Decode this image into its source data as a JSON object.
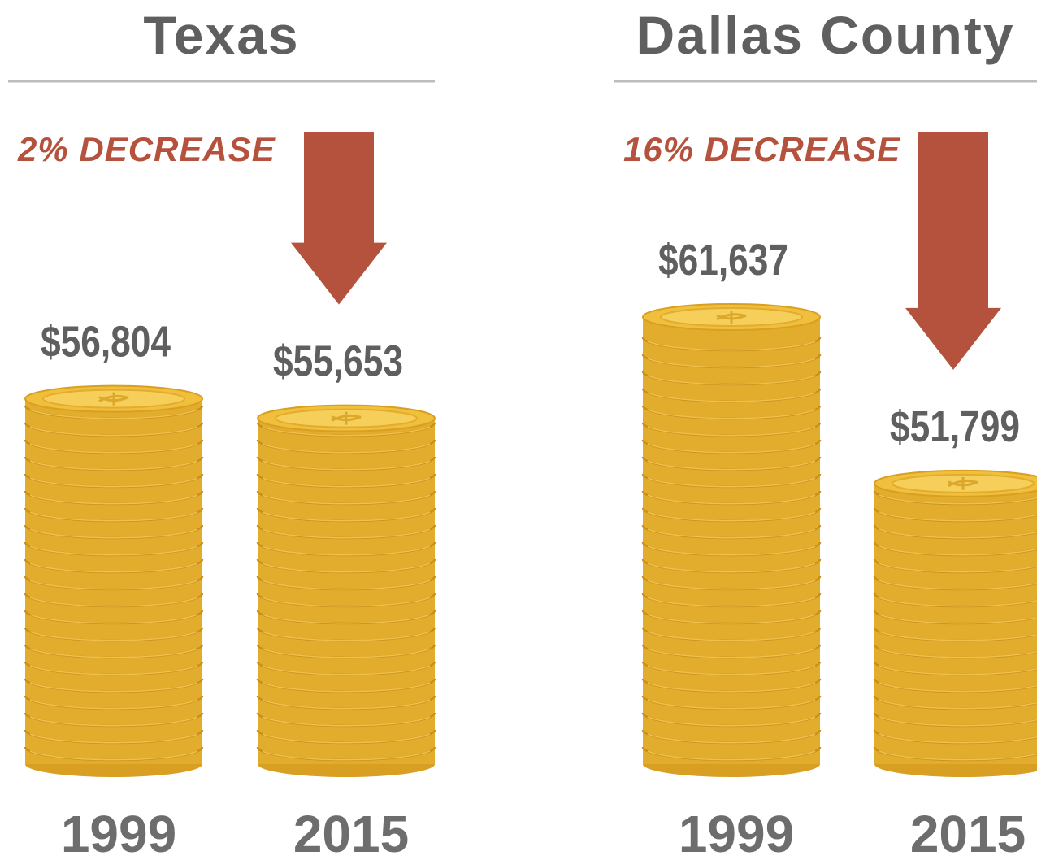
{
  "chart_data": [
    {
      "type": "bar",
      "title": "Texas",
      "annotation": "2% DECREASE",
      "categories": [
        "1999",
        "2015"
      ],
      "values": [
        56804,
        55653
      ],
      "value_labels": [
        "$56,804",
        "$55,653"
      ],
      "color": "#e2ac2d"
    },
    {
      "type": "bar",
      "title": "Dallas County",
      "annotation": "16% DECREASE",
      "categories": [
        "1999",
        "2015"
      ],
      "values": [
        61637,
        51799
      ],
      "value_labels": [
        "$61,637",
        "$51,799"
      ],
      "color": "#e2ac2d"
    }
  ]
}
